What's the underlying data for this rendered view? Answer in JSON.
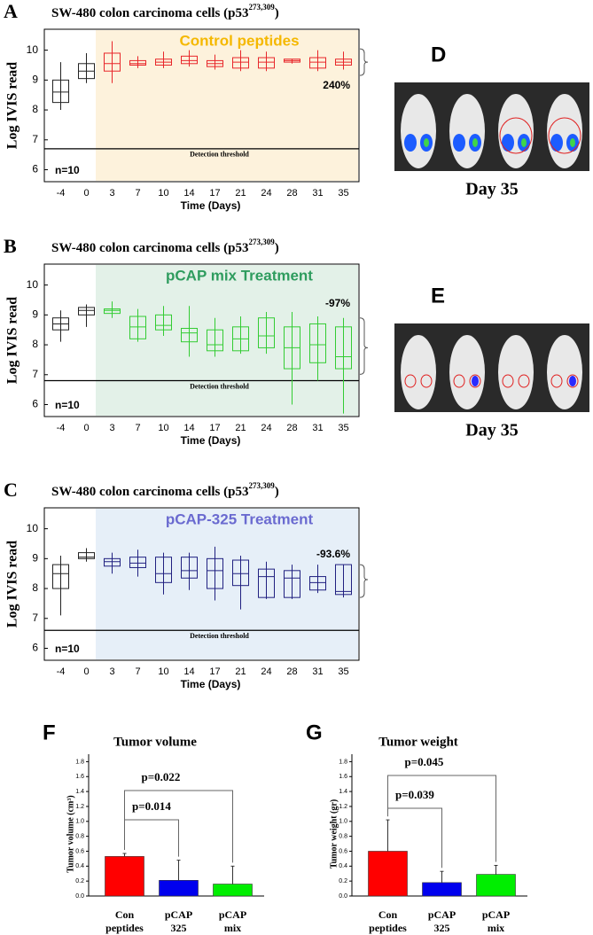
{
  "chart_data": [
    {
      "type": "box",
      "panel_label": "A",
      "title": "SW-480 colon carcinoma cells (p53",
      "title_superscript": "273,309",
      "title_end": ")",
      "x_label": "Time  (Days)",
      "y_label": "Log IVIS read",
      "categories": [
        "-4",
        "0",
        "3",
        "7",
        "10",
        "14",
        "17",
        "21",
        "24",
        "28",
        "31",
        "35"
      ],
      "boxes": {
        "min": [
          8.0,
          8.9,
          8.9,
          9.4,
          9.4,
          9.45,
          9.35,
          9.3,
          9.3,
          9.55,
          9.3,
          9.35
        ],
        "q1": [
          8.25,
          9.05,
          9.3,
          9.5,
          9.5,
          9.55,
          9.45,
          9.4,
          9.4,
          9.6,
          9.4,
          9.5
        ],
        "median": [
          8.6,
          9.3,
          9.55,
          9.55,
          9.6,
          9.65,
          9.55,
          9.6,
          9.6,
          9.65,
          9.6,
          9.6
        ],
        "q3": [
          9.0,
          9.55,
          9.9,
          9.65,
          9.7,
          9.8,
          9.65,
          9.75,
          9.75,
          9.7,
          9.75,
          9.7
        ],
        "max": [
          9.6,
          9.9,
          10.3,
          9.8,
          9.95,
          10.0,
          9.85,
          10.0,
          9.95,
          9.7,
          10.0,
          9.95
        ]
      },
      "pre_color": "#222222",
      "color": "#e8262a",
      "shade_color": "#fdf2dc",
      "label_color": "#f5b800",
      "treatment_label": "Control peptides",
      "change_label": "240%",
      "n_label": "n=10",
      "threshold": 6.7,
      "threshold_label": "Detection threshold",
      "ylim": [
        5.6,
        10.7
      ],
      "yticks": [
        6,
        7,
        8,
        9,
        10
      ]
    },
    {
      "type": "box",
      "panel_label": "B",
      "title": "SW-480 colon carcinoma cells (p53",
      "title_superscript": "273,309",
      "title_end": ")",
      "x_label": "Time  (Days)",
      "y_label": "Log IVIS read",
      "categories": [
        "-4",
        "0",
        "3",
        "7",
        "10",
        "14",
        "17",
        "21",
        "24",
        "28",
        "31",
        "35"
      ],
      "boxes": {
        "min": [
          8.1,
          8.6,
          8.9,
          8.1,
          8.3,
          7.6,
          7.6,
          7.7,
          7.7,
          6.0,
          6.8,
          5.7
        ],
        "q1": [
          8.5,
          9.0,
          9.05,
          8.2,
          8.5,
          8.1,
          7.8,
          7.8,
          7.9,
          7.2,
          7.4,
          7.2
        ],
        "median": [
          8.7,
          9.15,
          9.15,
          8.6,
          8.65,
          8.4,
          8.0,
          8.2,
          8.3,
          7.9,
          8.0,
          7.6
        ],
        "q3": [
          8.9,
          9.25,
          9.2,
          8.95,
          9.0,
          8.55,
          8.5,
          8.6,
          8.9,
          8.6,
          8.7,
          8.6
        ],
        "max": [
          9.15,
          9.35,
          9.45,
          9.2,
          9.3,
          9.3,
          8.9,
          8.95,
          9.1,
          9.1,
          8.95,
          8.9
        ]
      },
      "pre_color": "#222222",
      "color": "#33cc33",
      "shade_color": "#e3f1e8",
      "label_color": "#2e9c5e",
      "treatment_label": "pCAP mix  Treatment",
      "change_label": "-97%",
      "n_label": "n=10",
      "threshold": 6.8,
      "threshold_label": "Detection threshold",
      "ylim": [
        5.6,
        10.7
      ],
      "yticks": [
        6,
        7,
        8,
        9,
        10
      ]
    },
    {
      "type": "box",
      "panel_label": "C",
      "title": "SW-480 colon carcinoma cells (p53",
      "title_superscript": "273,309",
      "title_end": ")",
      "x_label": "Time  (Days)",
      "y_label": "Log IVIS read",
      "categories": [
        "-4",
        "0",
        "3",
        "7",
        "10",
        "14",
        "17",
        "21",
        "24",
        "28",
        "31",
        "35"
      ],
      "boxes": {
        "min": [
          7.1,
          8.9,
          8.5,
          8.4,
          7.8,
          7.95,
          7.6,
          7.3,
          7.65,
          7.65,
          7.85,
          7.7
        ],
        "q1": [
          8.0,
          9.0,
          8.75,
          8.7,
          8.2,
          8.35,
          8.0,
          8.1,
          7.7,
          7.7,
          7.95,
          7.8
        ],
        "median": [
          8.5,
          9.05,
          8.9,
          8.85,
          8.5,
          8.6,
          8.6,
          8.5,
          8.4,
          8.35,
          8.2,
          7.9
        ],
        "q3": [
          8.8,
          9.2,
          9.0,
          9.05,
          9.05,
          9.05,
          9.0,
          8.95,
          8.65,
          8.6,
          8.4,
          8.8
        ],
        "max": [
          9.1,
          9.35,
          9.2,
          9.3,
          9.2,
          9.2,
          9.4,
          9.1,
          8.9,
          8.8,
          8.8,
          8.8
        ]
      },
      "pre_color": "#222222",
      "color": "#202080",
      "shade_color": "#e6eff8",
      "label_color": "#6a6ad0",
      "treatment_label": "pCAP-325 Treatment",
      "change_label": "-93.6%",
      "n_label": "n=10",
      "threshold": 6.6,
      "threshold_label": "Detection threshold",
      "ylim": [
        5.6,
        10.7
      ],
      "yticks": [
        6,
        7,
        8,
        9,
        10
      ]
    },
    {
      "type": "bar",
      "panel_label": "F",
      "title": "Tumor volume",
      "y_label": "Tumor volume (cm³)",
      "categories": [
        "Con peptides",
        "pCAP 325",
        "pCAP mix"
      ],
      "values": [
        0.53,
        0.21,
        0.16
      ],
      "errors": [
        0.04,
        0.27,
        0.24
      ],
      "colors": [
        "#ff0000",
        "#0000ee",
        "#00ee00"
      ],
      "annotations": [
        "p=0.022",
        "p=0.014"
      ],
      "ylim": [
        0,
        1.9
      ],
      "yticks": [
        {
          "value": 0,
          "label": "0.0"
        },
        0.2,
        0.4,
        0.6,
        0.8,
        {
          "value": 1,
          "label": "1.0"
        },
        1.2,
        1.4,
        1.6,
        1.8
      ]
    },
    {
      "type": "bar",
      "panel_label": "G",
      "title": "Tumor weight",
      "y_label": "Tumor weight (gr)",
      "categories": [
        "Con peptides",
        "pCAP 325",
        "pCAP mix"
      ],
      "values": [
        0.6,
        0.18,
        0.29
      ],
      "errors": [
        0.42,
        0.15,
        0.12
      ],
      "colors": [
        "#ff0000",
        "#0000ee",
        "#00ee00"
      ],
      "annotations": [
        "p=0.045",
        "p=0.039"
      ],
      "ylim": [
        0,
        1.9
      ],
      "yticks": [
        {
          "value": 0,
          "label": "0.0"
        },
        0.2,
        0.4,
        0.6,
        0.8,
        {
          "value": 1,
          "label": "1.0"
        },
        1.2,
        1.4,
        1.6,
        1.8
      ]
    }
  ],
  "images": [
    {
      "label": "D",
      "caption": "Day 35"
    },
    {
      "label": "E",
      "caption": "Day 35"
    }
  ]
}
